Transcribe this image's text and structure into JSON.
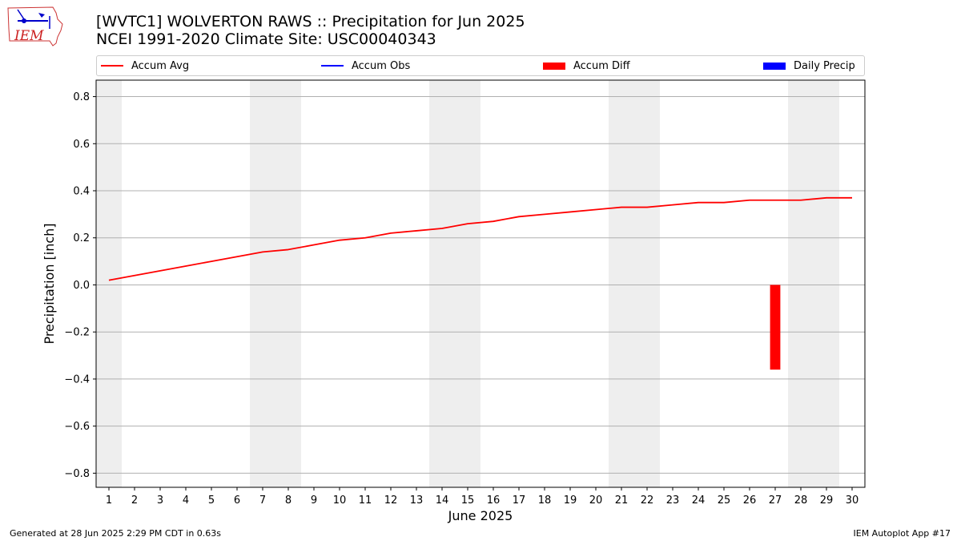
{
  "header": {
    "title_line1": "[WVTC1] WOLVERTON RAWS :: Precipitation for Jun 2025",
    "title_line2": "NCEI 1991-2020 Climate Site: USC00040343",
    "logo_text": "IEM"
  },
  "legend": {
    "items": [
      {
        "label": "Accum Avg",
        "kind": "line",
        "color": "#ff0000"
      },
      {
        "label": "Accum Obs",
        "kind": "line",
        "color": "#0000ff"
      },
      {
        "label": "Accum Diff",
        "kind": "bar",
        "color": "#ff0000"
      },
      {
        "label": "Daily Precip",
        "kind": "bar",
        "color": "#0000ff"
      }
    ]
  },
  "footer": {
    "left": "Generated at 28 Jun 2025 2:29 PM CDT in 0.63s",
    "right": "IEM Autoplot App #17"
  },
  "chart_data": {
    "type": "line",
    "title": "[WVTC1] WOLVERTON RAWS :: Precipitation for Jun 2025",
    "subtitle": "NCEI 1991-2020 Climate Site: USC00040343",
    "xlabel": "June 2025",
    "ylabel": "Precipitation [inch]",
    "xlim": [
      0.5,
      30.5
    ],
    "ylim": [
      -0.86,
      0.87
    ],
    "grid": "horizontal",
    "legend_placement": "top",
    "weekend_shading": [
      [
        0.5,
        1.5
      ],
      [
        6.5,
        8.5
      ],
      [
        13.5,
        15.5
      ],
      [
        20.5,
        22.5
      ],
      [
        27.5,
        29.5
      ]
    ],
    "x_ticks": [
      1,
      2,
      3,
      4,
      5,
      6,
      7,
      8,
      9,
      10,
      11,
      12,
      13,
      14,
      15,
      16,
      17,
      18,
      19,
      20,
      21,
      22,
      23,
      24,
      25,
      26,
      27,
      28,
      29,
      30
    ],
    "y_ticks": [
      -0.8,
      -0.6,
      -0.4,
      -0.2,
      0.0,
      0.2,
      0.4,
      0.6,
      0.8
    ],
    "y_tick_labels": [
      "−0.8",
      "−0.6",
      "−0.4",
      "−0.2",
      "0.0",
      "0.2",
      "0.4",
      "0.6",
      "0.8"
    ],
    "series": [
      {
        "name": "Accum Avg",
        "kind": "line",
        "color": "#ff0000",
        "x": [
          1,
          2,
          3,
          4,
          5,
          6,
          7,
          8,
          9,
          10,
          11,
          12,
          13,
          14,
          15,
          16,
          17,
          18,
          19,
          20,
          21,
          22,
          23,
          24,
          25,
          26,
          27,
          28,
          29,
          30
        ],
        "values": [
          0.02,
          0.04,
          0.06,
          0.08,
          0.1,
          0.12,
          0.14,
          0.15,
          0.17,
          0.19,
          0.2,
          0.22,
          0.23,
          0.24,
          0.26,
          0.27,
          0.29,
          0.3,
          0.31,
          0.32,
          0.33,
          0.33,
          0.34,
          0.35,
          0.35,
          0.36,
          0.36,
          0.36,
          0.37,
          0.37
        ]
      },
      {
        "name": "Accum Diff",
        "kind": "bar",
        "color": "#ff0000",
        "x": [
          27
        ],
        "values": [
          -0.36
        ]
      }
    ]
  }
}
